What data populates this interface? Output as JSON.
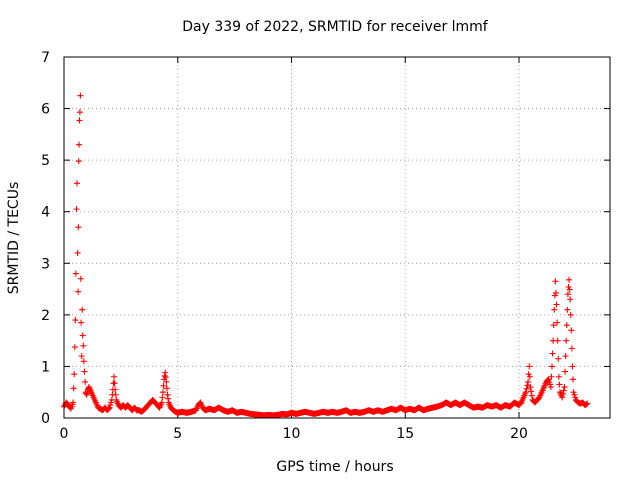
{
  "chart_data": {
    "type": "scatter",
    "title": "Day 339 of 2022, SRMTID for receiver lmmf",
    "xlabel": "GPS time / hours",
    "ylabel": "SRMTID / TECUs",
    "xlim": [
      0,
      24
    ],
    "ylim": [
      0,
      7
    ],
    "xticks": [
      0,
      5,
      10,
      15,
      20
    ],
    "yticks": [
      0,
      1,
      2,
      3,
      4,
      5,
      6,
      7
    ],
    "xtick_labels": [
      "0",
      "5",
      "10",
      "15",
      "20"
    ],
    "ytick_labels": [
      "0",
      "1",
      "2",
      "3",
      "4",
      "5",
      "6",
      "7"
    ],
    "grid": true,
    "marker": "+",
    "color": "#ff0000",
    "series": [
      {
        "name": "SRMTID",
        "points": [
          [
            0.0,
            0.22
          ],
          [
            0.1,
            0.3
          ],
          [
            0.2,
            0.25
          ],
          [
            0.3,
            0.18
          ],
          [
            0.4,
            0.3
          ],
          [
            0.45,
            0.85
          ],
          [
            0.5,
            1.9
          ],
          [
            0.52,
            2.8
          ],
          [
            0.55,
            4.05
          ],
          [
            0.57,
            4.55
          ],
          [
            0.6,
            3.2
          ],
          [
            0.62,
            2.45
          ],
          [
            0.63,
            3.7
          ],
          [
            0.65,
            4.98
          ],
          [
            0.66,
            5.3
          ],
          [
            0.68,
            5.77
          ],
          [
            0.7,
            5.93
          ],
          [
            0.72,
            6.25
          ],
          [
            0.74,
            2.7
          ],
          [
            0.75,
            1.85
          ],
          [
            0.78,
            1.2
          ],
          [
            0.8,
            2.1
          ],
          [
            0.82,
            1.6
          ],
          [
            0.85,
            1.4
          ],
          [
            0.87,
            1.1
          ],
          [
            0.9,
            0.9
          ],
          [
            0.93,
            0.7
          ],
          [
            0.95,
            0.5
          ],
          [
            1.0,
            0.45
          ],
          [
            1.05,
            0.55
          ],
          [
            1.1,
            0.6
          ],
          [
            1.2,
            0.5
          ],
          [
            1.3,
            0.4
          ],
          [
            1.4,
            0.3
          ],
          [
            1.5,
            0.2
          ],
          [
            1.6,
            0.18
          ],
          [
            1.7,
            0.15
          ],
          [
            1.8,
            0.2
          ],
          [
            1.9,
            0.15
          ],
          [
            2.0,
            0.2
          ],
          [
            2.1,
            0.35
          ],
          [
            2.15,
            0.55
          ],
          [
            2.2,
            0.8
          ],
          [
            2.25,
            0.55
          ],
          [
            2.3,
            0.35
          ],
          [
            2.4,
            0.25
          ],
          [
            2.5,
            0.2
          ],
          [
            2.6,
            0.25
          ],
          [
            2.7,
            0.2
          ],
          [
            2.8,
            0.25
          ],
          [
            2.9,
            0.2
          ],
          [
            3.0,
            0.15
          ],
          [
            3.1,
            0.2
          ],
          [
            3.2,
            0.15
          ],
          [
            3.3,
            0.15
          ],
          [
            3.4,
            0.12
          ],
          [
            3.5,
            0.15
          ],
          [
            3.6,
            0.2
          ],
          [
            3.7,
            0.25
          ],
          [
            3.8,
            0.3
          ],
          [
            3.9,
            0.35
          ],
          [
            4.0,
            0.3
          ],
          [
            4.1,
            0.25
          ],
          [
            4.2,
            0.2
          ],
          [
            4.3,
            0.3
          ],
          [
            4.35,
            0.5
          ],
          [
            4.4,
            0.75
          ],
          [
            4.45,
            0.88
          ],
          [
            4.5,
            0.7
          ],
          [
            4.55,
            0.45
          ],
          [
            4.6,
            0.3
          ],
          [
            4.7,
            0.2
          ],
          [
            4.8,
            0.15
          ],
          [
            4.9,
            0.12
          ],
          [
            5.0,
            0.1
          ],
          [
            5.2,
            0.12
          ],
          [
            5.4,
            0.1
          ],
          [
            5.6,
            0.12
          ],
          [
            5.8,
            0.15
          ],
          [
            5.9,
            0.25
          ],
          [
            6.0,
            0.3
          ],
          [
            6.1,
            0.2
          ],
          [
            6.2,
            0.15
          ],
          [
            6.4,
            0.18
          ],
          [
            6.6,
            0.15
          ],
          [
            6.8,
            0.2
          ],
          [
            7.0,
            0.15
          ],
          [
            7.2,
            0.12
          ],
          [
            7.4,
            0.15
          ],
          [
            7.6,
            0.1
          ],
          [
            7.8,
            0.12
          ],
          [
            8.0,
            0.1
          ],
          [
            8.2,
            0.08
          ],
          [
            8.4,
            0.07
          ],
          [
            8.6,
            0.06
          ],
          [
            8.8,
            0.05
          ],
          [
            9.0,
            0.06
          ],
          [
            9.2,
            0.05
          ],
          [
            9.4,
            0.06
          ],
          [
            9.6,
            0.08
          ],
          [
            9.8,
            0.07
          ],
          [
            10.0,
            0.1
          ],
          [
            10.2,
            0.08
          ],
          [
            10.4,
            0.1
          ],
          [
            10.6,
            0.12
          ],
          [
            10.8,
            0.1
          ],
          [
            11.0,
            0.08
          ],
          [
            11.2,
            0.1
          ],
          [
            11.4,
            0.12
          ],
          [
            11.6,
            0.1
          ],
          [
            11.8,
            0.12
          ],
          [
            12.0,
            0.1
          ],
          [
            12.2,
            0.12
          ],
          [
            12.4,
            0.15
          ],
          [
            12.6,
            0.1
          ],
          [
            12.8,
            0.12
          ],
          [
            13.0,
            0.1
          ],
          [
            13.2,
            0.12
          ],
          [
            13.4,
            0.15
          ],
          [
            13.6,
            0.12
          ],
          [
            13.8,
            0.15
          ],
          [
            14.0,
            0.12
          ],
          [
            14.2,
            0.15
          ],
          [
            14.4,
            0.18
          ],
          [
            14.6,
            0.15
          ],
          [
            14.8,
            0.2
          ],
          [
            15.0,
            0.15
          ],
          [
            15.2,
            0.18
          ],
          [
            15.4,
            0.15
          ],
          [
            15.6,
            0.2
          ],
          [
            15.8,
            0.15
          ],
          [
            16.0,
            0.18
          ],
          [
            16.2,
            0.2
          ],
          [
            16.4,
            0.22
          ],
          [
            16.6,
            0.25
          ],
          [
            16.8,
            0.3
          ],
          [
            17.0,
            0.25
          ],
          [
            17.2,
            0.3
          ],
          [
            17.4,
            0.25
          ],
          [
            17.6,
            0.3
          ],
          [
            17.8,
            0.25
          ],
          [
            18.0,
            0.2
          ],
          [
            18.2,
            0.22
          ],
          [
            18.4,
            0.2
          ],
          [
            18.6,
            0.25
          ],
          [
            18.8,
            0.22
          ],
          [
            19.0,
            0.25
          ],
          [
            19.2,
            0.2
          ],
          [
            19.4,
            0.25
          ],
          [
            19.6,
            0.22
          ],
          [
            19.8,
            0.3
          ],
          [
            20.0,
            0.25
          ],
          [
            20.1,
            0.3
          ],
          [
            20.2,
            0.4
          ],
          [
            20.3,
            0.5
          ],
          [
            20.4,
            0.7
          ],
          [
            20.45,
            1.0
          ],
          [
            20.5,
            0.6
          ],
          [
            20.6,
            0.35
          ],
          [
            20.7,
            0.3
          ],
          [
            20.8,
            0.35
          ],
          [
            20.9,
            0.4
          ],
          [
            21.0,
            0.5
          ],
          [
            21.1,
            0.6
          ],
          [
            21.2,
            0.7
          ],
          [
            21.3,
            0.75
          ],
          [
            21.4,
            0.6
          ],
          [
            21.45,
            1.0
          ],
          [
            21.5,
            1.5
          ],
          [
            21.55,
            2.1
          ],
          [
            21.6,
            2.65
          ],
          [
            21.65,
            2.2
          ],
          [
            21.7,
            1.5
          ],
          [
            21.75,
            0.8
          ],
          [
            21.8,
            0.5
          ],
          [
            21.9,
            0.4
          ],
          [
            22.0,
            0.6
          ],
          [
            22.05,
            1.2
          ],
          [
            22.1,
            1.8
          ],
          [
            22.15,
            2.4
          ],
          [
            22.2,
            2.68
          ],
          [
            22.25,
            2.3
          ],
          [
            22.3,
            1.7
          ],
          [
            22.35,
            1.0
          ],
          [
            22.4,
            0.5
          ],
          [
            22.5,
            0.35
          ],
          [
            22.6,
            0.3
          ],
          [
            22.7,
            0.28
          ],
          [
            22.8,
            0.3
          ],
          [
            22.9,
            0.25
          ],
          [
            23.0,
            0.28
          ]
        ]
      }
    ]
  }
}
